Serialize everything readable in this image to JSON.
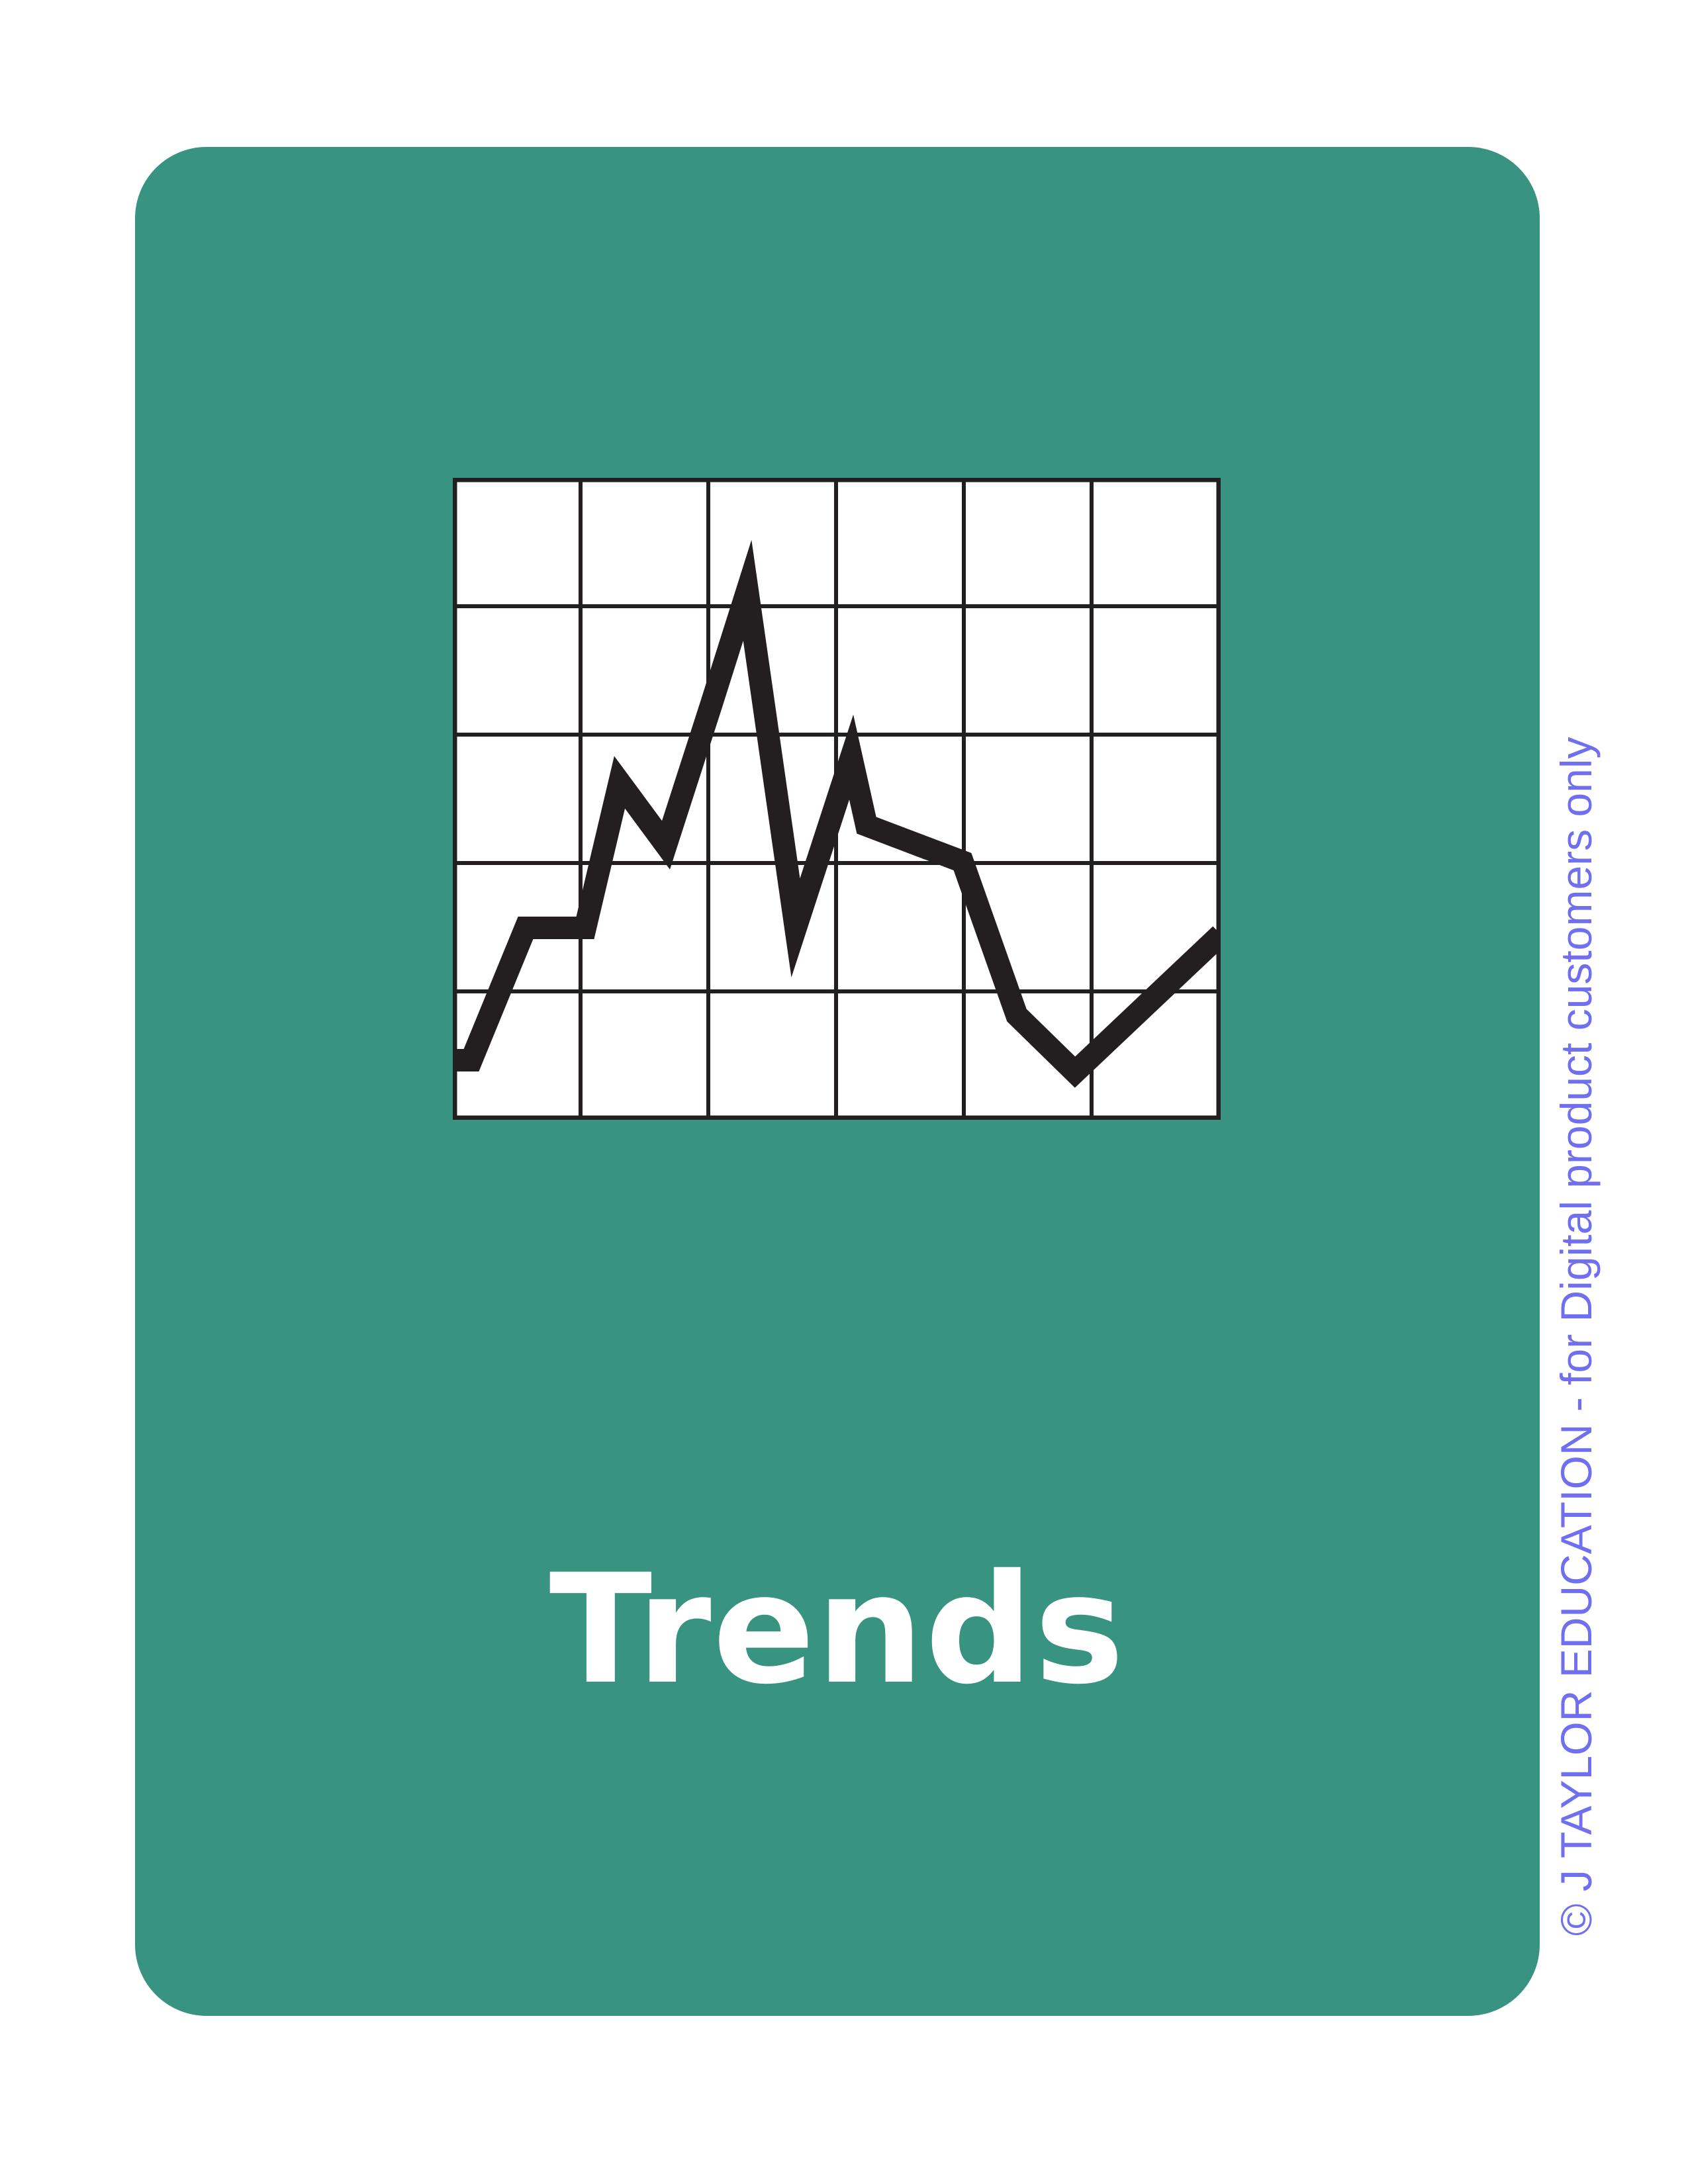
{
  "card": {
    "title": "Trends",
    "icon": "line-graph-icon",
    "background_color": "#389381",
    "title_color": "#ffffff"
  },
  "watermark": {
    "text": "© J TAYLOR EDUCATION - for Digital product customers only",
    "color": "#6f6ff0"
  }
}
